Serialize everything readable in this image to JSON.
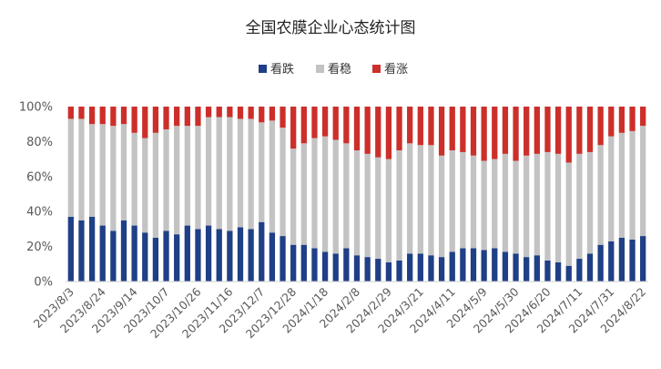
{
  "chart_data": {
    "type": "bar",
    "stacked": true,
    "title": "全国农膜企业心态统计图",
    "legend": {
      "position": "top",
      "items": [
        "看跌",
        "看稳",
        "看涨"
      ]
    },
    "colors": {
      "看跌": "#1f3f86",
      "看稳": "#c3c3c3",
      "看涨": "#cc2f2a"
    },
    "y_axis": {
      "min": 0,
      "max": 100,
      "step": 20,
      "ticks": [
        "0%",
        "20%",
        "40%",
        "60%",
        "80%",
        "100%"
      ]
    },
    "grid": false,
    "xtick_labels": [
      "2023/8/3",
      "2023/8/24",
      "2023/9/14",
      "2023/10/7",
      "2023/10/26",
      "2023/11/16",
      "2023/12/7",
      "2023/12/28",
      "2024/1/18",
      "2024/2/8",
      "2024/2/29",
      "2024/3/21",
      "2024/4/11",
      "2024/5/9",
      "2024/5/30",
      "2024/6/20",
      "2024/7/11",
      "2024/7/31",
      "2024/8/22"
    ],
    "xtick_every": 3,
    "series": [
      {
        "name": "看跌",
        "values": [
          37,
          35,
          37,
          32,
          29,
          35,
          32,
          28,
          25,
          29,
          27,
          32,
          30,
          32,
          30,
          29,
          31,
          30,
          34,
          28,
          26,
          21,
          21,
          19,
          17,
          16,
          19,
          15,
          14,
          13,
          11,
          12,
          16,
          16,
          15,
          14,
          17,
          19,
          19,
          18,
          19,
          17,
          16,
          14,
          15,
          12,
          11,
          9,
          13,
          16,
          21,
          23,
          25,
          24,
          26
        ]
      },
      {
        "name": "看稳",
        "values": [
          56,
          58,
          53,
          58,
          60,
          55,
          53,
          54,
          60,
          58,
          62,
          57,
          59,
          62,
          64,
          65,
          62,
          63,
          57,
          64,
          62,
          55,
          58,
          63,
          66,
          65,
          60,
          60,
          59,
          58,
          59,
          63,
          63,
          62,
          63,
          58,
          58,
          55,
          53,
          51,
          51,
          56,
          53,
          58,
          58,
          62,
          62,
          59,
          60,
          58,
          57,
          60,
          60,
          62,
          63
        ]
      },
      {
        "name": "看涨",
        "values": [
          7,
          7,
          10,
          10,
          11,
          10,
          15,
          18,
          15,
          13,
          11,
          11,
          11,
          6,
          6,
          6,
          7,
          7,
          9,
          8,
          12,
          24,
          21,
          18,
          17,
          19,
          21,
          25,
          27,
          29,
          30,
          25,
          21,
          22,
          22,
          28,
          25,
          26,
          28,
          31,
          30,
          27,
          31,
          28,
          27,
          26,
          27,
          32,
          27,
          26,
          22,
          17,
          15,
          14,
          11
        ]
      }
    ]
  }
}
